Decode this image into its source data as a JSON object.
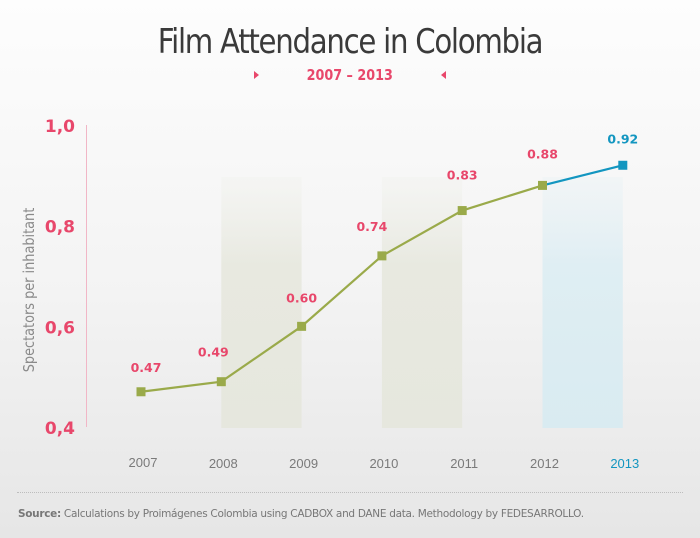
{
  "header": {
    "title": "Film Attendance in Colombia",
    "subtitle": "2007 – 2013"
  },
  "footer": {
    "source_label": "Source:",
    "source_text": "Calculations by Proimágenes Colombia using CADBOX and DANE data. Methodology by FEDESARROLLO."
  },
  "colors": {
    "accent_pink": "#e8476b",
    "line_green": "#9aaa4a",
    "line_blue": "#1396c0",
    "band_gray": "#e6e7de",
    "band_blue": "#d9ebf1",
    "axis_line": "#f1b6c6",
    "tick_gray": "#7a7a7a"
  },
  "chart_data": {
    "type": "line",
    "title": "Film Attendance in Colombia",
    "subtitle": "2007 – 2013",
    "xlabel": "",
    "ylabel": "Spectators per inhabitant",
    "ylim": [
      0.4,
      1.0
    ],
    "yticks": [
      {
        "value": 1.0,
        "label": "1,0"
      },
      {
        "value": 0.8,
        "label": "0,8"
      },
      {
        "value": 0.6,
        "label": "0,6"
      },
      {
        "value": 0.4,
        "label": "0,4"
      }
    ],
    "categories": [
      "2007",
      "2008",
      "2009",
      "2010",
      "2011",
      "2012",
      "2013"
    ],
    "values": [
      0.47,
      0.49,
      0.6,
      0.74,
      0.83,
      0.88,
      0.92
    ],
    "value_labels": [
      "0.47",
      "0.49",
      "0.60",
      "0.74",
      "0.83",
      "0.88",
      "0.92"
    ],
    "highlight_category": "2013",
    "shaded_bands": [
      {
        "from": "2008",
        "to": "2009",
        "style": "gray"
      },
      {
        "from": "2010",
        "to": "2011",
        "style": "gray"
      },
      {
        "from": "2012",
        "to": "2013",
        "style": "blue"
      }
    ],
    "grid": false,
    "legend": "none"
  }
}
